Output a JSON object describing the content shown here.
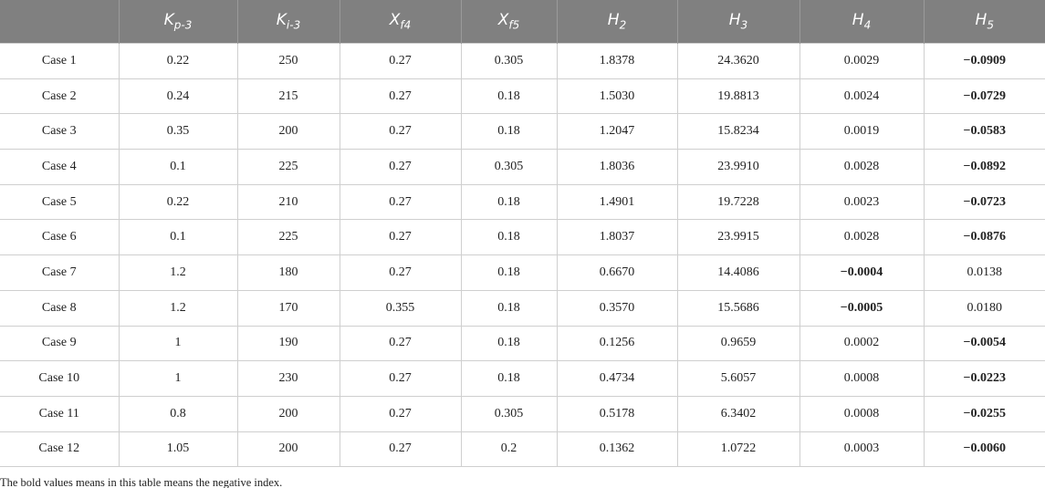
{
  "table": {
    "header": [
      {
        "symbol": "K",
        "subscript": "p-3"
      },
      {
        "symbol": "K",
        "subscript": "i-3"
      },
      {
        "symbol": "X",
        "subscript": "f4"
      },
      {
        "symbol": "X",
        "subscript": "f5"
      },
      {
        "symbol": "H",
        "subscript": "2"
      },
      {
        "symbol": "H",
        "subscript": "3"
      },
      {
        "symbol": "H",
        "subscript": "4"
      },
      {
        "symbol": "H",
        "subscript": "5"
      }
    ],
    "rows": [
      [
        "Case 1",
        "0.22",
        "250",
        "0.27",
        "0.305",
        "1.8378",
        "24.3620",
        "0.0029",
        "−0.0909"
      ],
      [
        "Case 2",
        "0.24",
        "215",
        "0.27",
        "0.18",
        "1.5030",
        "19.8813",
        "0.0024",
        "−0.0729"
      ],
      [
        "Case 3",
        "0.35",
        "200",
        "0.27",
        "0.18",
        "1.2047",
        "15.8234",
        "0.0019",
        "−0.0583"
      ],
      [
        "Case 4",
        "0.1",
        "225",
        "0.27",
        "0.305",
        "1.8036",
        "23.9910",
        "0.0028",
        "−0.0892"
      ],
      [
        "Case 5",
        "0.22",
        "210",
        "0.27",
        "0.18",
        "1.4901",
        "19.7228",
        "0.0023",
        "−0.0723"
      ],
      [
        "Case 6",
        "0.1",
        "225",
        "0.27",
        "0.18",
        "1.8037",
        "23.9915",
        "0.0028",
        "−0.0876"
      ],
      [
        "Case 7",
        "1.2",
        "180",
        "0.27",
        "0.18",
        "0.6670",
        "14.4086",
        "−0.0004",
        "0.0138"
      ],
      [
        "Case 8",
        "1.2",
        "170",
        "0.355",
        "0.18",
        "0.3570",
        "15.5686",
        "−0.0005",
        "0.0180"
      ],
      [
        "Case 9",
        "1",
        "190",
        "0.27",
        "0.18",
        "0.1256",
        "0.9659",
        "0.0002",
        "−0.0054"
      ],
      [
        "Case 10",
        "1",
        "230",
        "0.27",
        "0.18",
        "0.4734",
        "5.6057",
        "0.0008",
        "−0.0223"
      ],
      [
        "Case 11",
        "0.8",
        "200",
        "0.27",
        "0.305",
        "0.5178",
        "6.3402",
        "0.0008",
        "−0.0255"
      ],
      [
        "Case 12",
        "1.05",
        "200",
        "0.27",
        "0.2",
        "0.1362",
        "1.0722",
        "0.0003",
        "−0.0060"
      ]
    ],
    "footnote": "The bold values means in this table means the negative index."
  }
}
